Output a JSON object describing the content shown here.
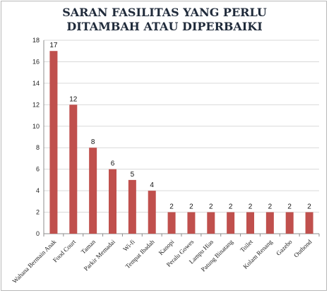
{
  "chart_data": {
    "type": "bar",
    "title_lines": [
      "SARAN FASILITAS YANG PERLU",
      "DITAMBAH ATAU DIPERBAIKI"
    ],
    "categories": [
      "Wahana Bermain Anak",
      "Food Court",
      "Taman",
      "Parkir Memadai",
      "Wi-fi",
      "Tempat Ibadah",
      "Kanopi",
      "Peralu Gowes",
      "Lampu Hias",
      "Patung Binatang",
      "Toilet",
      "Kolam Renang",
      "Gazebo",
      "Outbond"
    ],
    "values": [
      17,
      12,
      8,
      6,
      5,
      4,
      2,
      2,
      2,
      2,
      2,
      2,
      2,
      2
    ],
    "ylim": [
      0,
      18
    ],
    "yticks": [
      0,
      2,
      4,
      6,
      8,
      10,
      12,
      14,
      16,
      18
    ],
    "grid": true,
    "legend": "none",
    "bar_color": "#c0504d",
    "grid_color": "#d9d9d9",
    "xlabel": "",
    "ylabel": ""
  }
}
